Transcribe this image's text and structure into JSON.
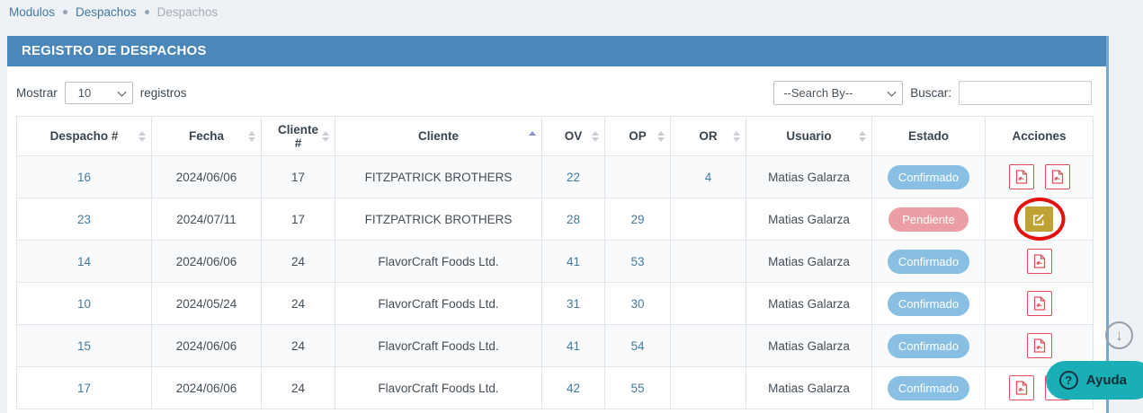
{
  "breadcrumb": {
    "items": [
      "Modulos",
      "Despachos",
      "Despachos"
    ]
  },
  "panel": {
    "title": "REGISTRO DE DESPACHOS"
  },
  "controls": {
    "show_label": "Mostrar",
    "show_value": "10",
    "records_label": "registros",
    "search_by_value": "--Search By--",
    "search_label": "Buscar:",
    "search_value": "",
    "search_placeholder": ""
  },
  "table": {
    "columns": [
      {
        "label": "Despacho #",
        "sort": "both"
      },
      {
        "label": "Fecha",
        "sort": "both"
      },
      {
        "label": "Cliente #",
        "sort": "both"
      },
      {
        "label": "Cliente",
        "sort": "asc"
      },
      {
        "label": "OV",
        "sort": "both"
      },
      {
        "label": "OP",
        "sort": "both"
      },
      {
        "label": "OR",
        "sort": "both"
      },
      {
        "label": "Usuario",
        "sort": "both"
      },
      {
        "label": "Estado",
        "sort": "none"
      },
      {
        "label": "Acciones",
        "sort": "none"
      }
    ],
    "rows": [
      {
        "despacho": "16",
        "fecha": "2024/06/06",
        "cliente_num": "17",
        "cliente": "FITZPATRICK BROTHERS",
        "ov": "22",
        "op": "",
        "or": "4",
        "usuario": "Matias Galarza",
        "estado": "Confirmado",
        "estado_type": "confirmed",
        "actions": [
          "pdf",
          "pdf"
        ],
        "annotated": false
      },
      {
        "despacho": "23",
        "fecha": "2024/07/11",
        "cliente_num": "17",
        "cliente": "FITZPATRICK BROTHERS",
        "ov": "28",
        "op": "29",
        "or": "",
        "usuario": "Matias Galarza",
        "estado": "Pendiente",
        "estado_type": "pending",
        "actions": [
          "edit"
        ],
        "annotated": true
      },
      {
        "despacho": "14",
        "fecha": "2024/06/06",
        "cliente_num": "24",
        "cliente": "FlavorCraft Foods Ltd.",
        "ov": "41",
        "op": "53",
        "or": "",
        "usuario": "Matias Galarza",
        "estado": "Confirmado",
        "estado_type": "confirmed",
        "actions": [
          "pdf"
        ],
        "annotated": false
      },
      {
        "despacho": "10",
        "fecha": "2024/05/24",
        "cliente_num": "24",
        "cliente": "FlavorCraft Foods Ltd.",
        "ov": "31",
        "op": "30",
        "or": "",
        "usuario": "Matias Galarza",
        "estado": "Confirmado",
        "estado_type": "confirmed",
        "actions": [
          "pdf"
        ],
        "annotated": false
      },
      {
        "despacho": "15",
        "fecha": "2024/06/06",
        "cliente_num": "24",
        "cliente": "FlavorCraft Foods Ltd.",
        "ov": "41",
        "op": "54",
        "or": "",
        "usuario": "Matias Galarza",
        "estado": "Confirmado",
        "estado_type": "confirmed",
        "actions": [
          "pdf"
        ],
        "annotated": false
      },
      {
        "despacho": "17",
        "fecha": "2024/06/06",
        "cliente_num": "24",
        "cliente": "FlavorCraft Foods Ltd.",
        "ov": "42",
        "op": "55",
        "or": "",
        "usuario": "Matias Galarza",
        "estado": "Confirmado",
        "estado_type": "confirmed",
        "actions": [
          "pdf",
          "pdf"
        ],
        "annotated": false
      }
    ]
  },
  "floating": {
    "help_label": "Ayuda",
    "help_icon": "?",
    "scroll_down_icon": "↓"
  },
  "colors": {
    "header_blue": "#4b87b9",
    "link_blue": "#44799f",
    "confirmed_badge": "#88bfe3",
    "pending_badge": "#eb9ea5",
    "pdf_red": "#dd4b57",
    "edit_gold": "#bea233",
    "annotation_red": "#e3100e",
    "help_teal": "#1aafb6",
    "sort_active": "#8a8fd8"
  }
}
